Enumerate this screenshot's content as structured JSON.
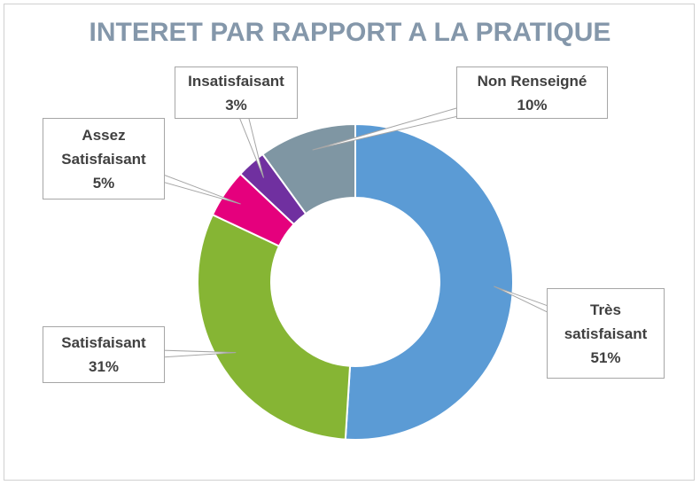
{
  "chart_data": {
    "type": "donut",
    "title": "INTERET PAR RAPPORT A LA PRATIQUE",
    "categories": [
      "Très satisfaisant",
      "Satisfaisant",
      "Assez Satisfaisant",
      "Insatisfaisant",
      "Non Renseigné"
    ],
    "values": [
      51,
      31,
      5,
      3,
      10
    ],
    "value_labels": [
      "51%",
      "31%",
      "5%",
      "3%",
      "10%"
    ],
    "colors": [
      "#5b9bd5",
      "#86b534",
      "#e5007d",
      "#7030a0",
      "#7f96a3"
    ]
  }
}
